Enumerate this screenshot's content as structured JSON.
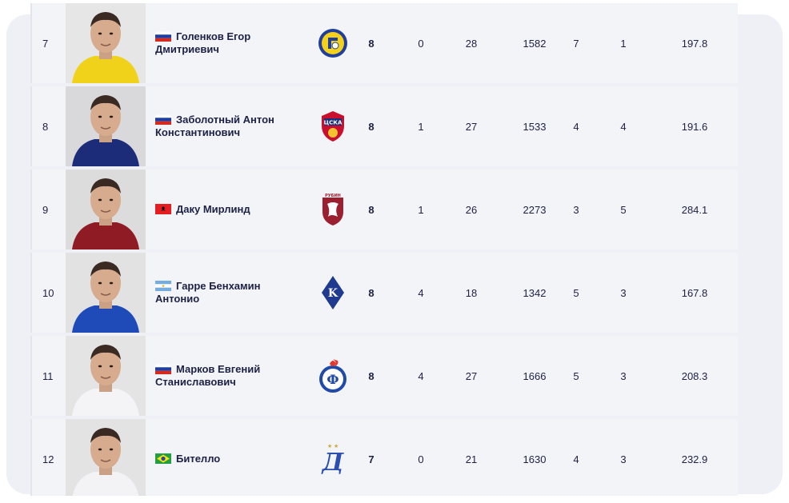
{
  "rows": [
    {
      "rank": "7",
      "name_line1": "Голенков Егор",
      "name_line2": "Дмитриевич",
      "flag": "russia-flag",
      "club_logo": "rostov-logo",
      "matches": "8",
      "goals": "0",
      "saves": "28",
      "minutes": "1582",
      "col_a": "7",
      "col_b": "1",
      "avg": "197.8",
      "photo_bg": "#e6e6e6",
      "kit_color": "#f1d21b"
    },
    {
      "rank": "8",
      "name_line1": "Заболотный Антон",
      "name_line2": "Константинович",
      "flag": "russia-flag",
      "club_logo": "cska-logo",
      "matches": "8",
      "goals": "1",
      "saves": "27",
      "minutes": "1533",
      "col_a": "4",
      "col_b": "4",
      "avg": "191.6",
      "photo_bg": "#d9d9dc",
      "kit_color": "#1d2c78"
    },
    {
      "rank": "9",
      "name_line1": "Даку Мирлинд",
      "name_line2": "",
      "flag": "albania-flag",
      "club_logo": "rubin-logo",
      "matches": "8",
      "goals": "1",
      "saves": "26",
      "minutes": "2273",
      "col_a": "3",
      "col_b": "5",
      "avg": "284.1",
      "photo_bg": "#dcdcdc",
      "kit_color": "#8f1b25"
    },
    {
      "rank": "10",
      "name_line1": "Гарре Бенхамин",
      "name_line2": "Антонио",
      "flag": "argentina-flag",
      "club_logo": "krylia-sovetov-logo",
      "matches": "8",
      "goals": "4",
      "saves": "18",
      "minutes": "1342",
      "col_a": "5",
      "col_b": "3",
      "avg": "167.8",
      "photo_bg": "#e2e2e2",
      "kit_color": "#1f4bb8"
    },
    {
      "rank": "11",
      "name_line1": "Марков Евгений",
      "name_line2": "Станиславович",
      "flag": "russia-flag",
      "club_logo": "fakel-logo",
      "matches": "8",
      "goals": "4",
      "saves": "27",
      "minutes": "1666",
      "col_a": "5",
      "col_b": "3",
      "avg": "208.3",
      "photo_bg": "#e4e4e4",
      "kit_color": "#f4f4f6"
    },
    {
      "rank": "12",
      "name_line1": "Бителло",
      "name_line2": "",
      "flag": "brazil-flag",
      "club_logo": "dynamo-logo",
      "matches": "7",
      "goals": "0",
      "saves": "21",
      "minutes": "1630",
      "col_a": "4",
      "col_b": "3",
      "avg": "232.9",
      "photo_bg": "#e3e3e3",
      "kit_color": "#f3f3f6"
    }
  ]
}
